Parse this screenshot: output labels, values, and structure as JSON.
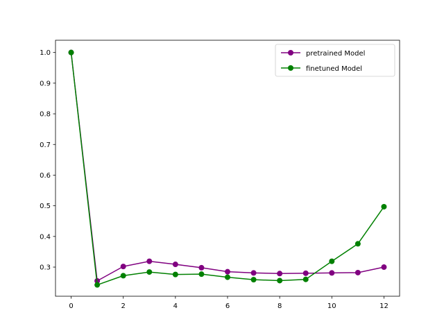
{
  "chart_data": {
    "type": "line",
    "title": "",
    "xlabel": "",
    "ylabel": "",
    "x": [
      0,
      1,
      2,
      3,
      4,
      5,
      6,
      7,
      8,
      9,
      10,
      11,
      12
    ],
    "xlim": [
      -0.6,
      12.6
    ],
    "ylim": [
      0.205,
      1.04
    ],
    "xticks": [
      0,
      2,
      4,
      6,
      8,
      10,
      12
    ],
    "yticks": [
      0.3,
      0.4,
      0.5,
      0.6,
      0.7,
      0.8,
      0.9,
      1.0
    ],
    "xtick_labels": [
      "0",
      "2",
      "4",
      "6",
      "8",
      "10",
      "12"
    ],
    "ytick_labels": [
      "0.3",
      "0.4",
      "0.5",
      "0.6",
      "0.7",
      "0.8",
      "0.9",
      "1.0"
    ],
    "grid": false,
    "legend_position": "top-right",
    "series": [
      {
        "name": "pretrained Model",
        "color": "#800080",
        "marker": "circle",
        "values": [
          1.0,
          0.255,
          0.302,
          0.319,
          0.309,
          0.298,
          0.285,
          0.281,
          0.279,
          0.28,
          0.281,
          0.282,
          0.3
        ]
      },
      {
        "name": "finetuned Model",
        "color": "#008000",
        "marker": "circle",
        "values": [
          1.0,
          0.242,
          0.272,
          0.284,
          0.276,
          0.277,
          0.267,
          0.259,
          0.256,
          0.26,
          0.319,
          0.376,
          0.497
        ]
      }
    ]
  }
}
